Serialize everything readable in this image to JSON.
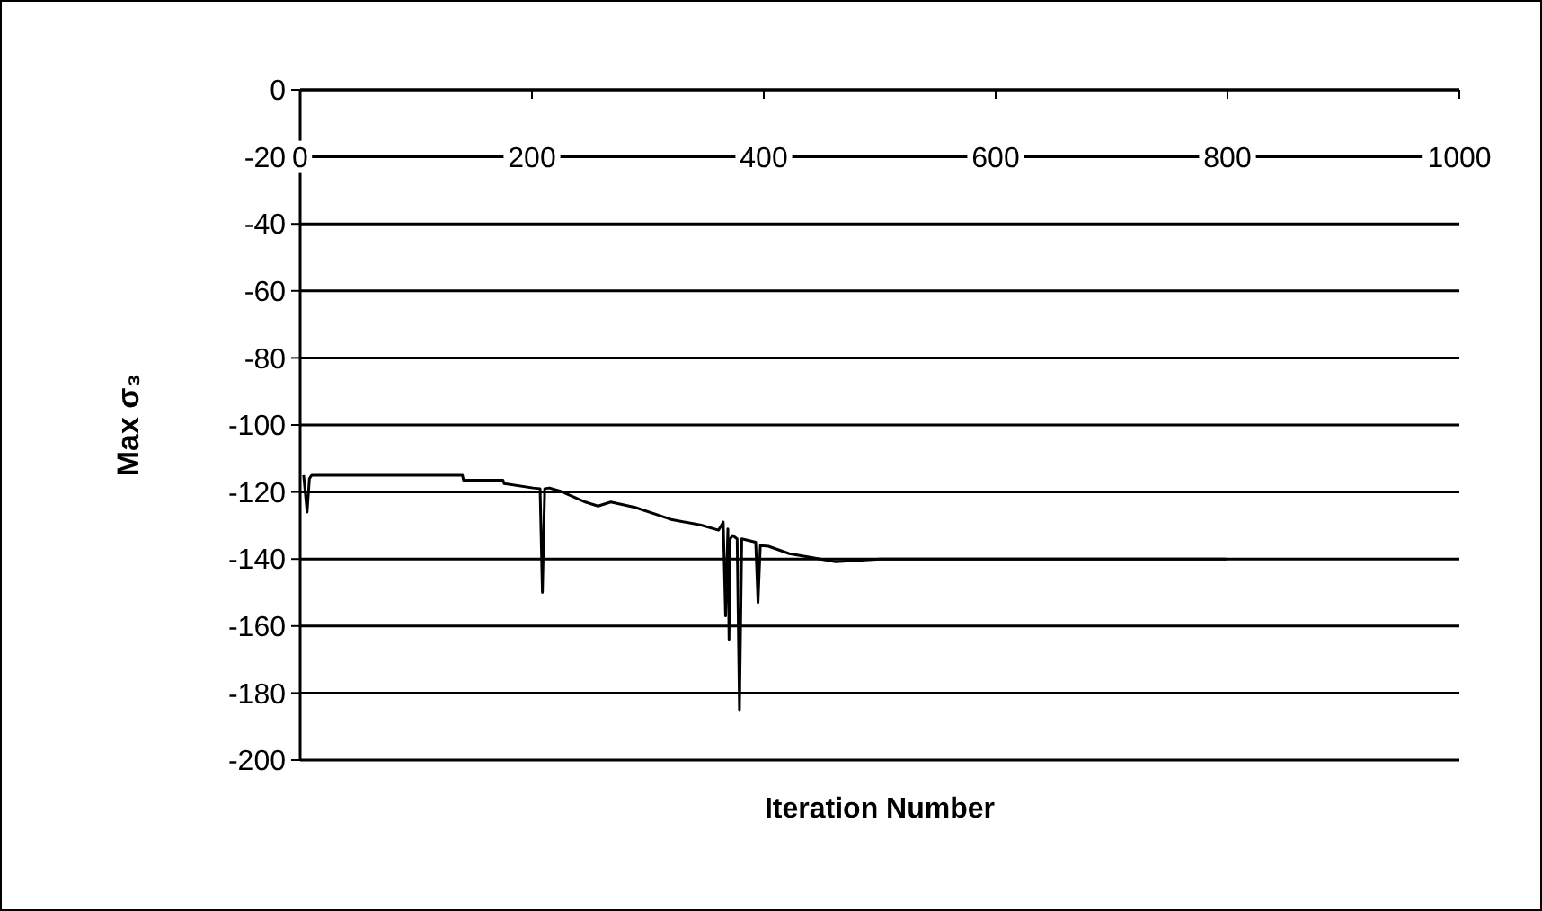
{
  "chart_data": {
    "type": "line",
    "xlabel": "Iteration Number",
    "ylabel": "Max σ₃",
    "x": [
      3,
      6,
      8,
      10,
      140,
      141,
      175,
      176,
      201,
      207,
      209,
      211,
      215,
      224,
      236,
      246,
      257,
      268,
      289,
      320,
      346,
      361,
      365,
      367,
      369,
      370,
      371,
      373,
      377,
      379,
      381,
      393,
      395,
      397,
      404,
      422,
      440,
      462,
      500,
      600,
      700,
      800
    ],
    "series": [
      {
        "color": "#000000",
        "values": [
          -115,
          -126,
          -116,
          -115,
          -115,
          -116.5,
          -116.5,
          -117.5,
          -118.8,
          -119,
          -150,
          -119,
          -118.8,
          -119.7,
          -121.5,
          -123,
          -124.2,
          -123,
          -124.6,
          -128.2,
          -129.9,
          -131.4,
          -129,
          -157,
          -131,
          -164,
          -134,
          -133,
          -134,
          -185,
          -134,
          -135,
          -153,
          -136,
          -136.2,
          -138.4,
          -139.5,
          -140.8,
          -140,
          -140,
          -140,
          -140
        ]
      }
    ],
    "xlim": [
      0,
      1000
    ],
    "xticks": [
      0,
      200,
      400,
      600,
      800,
      1000
    ],
    "ylim": [
      -200,
      0
    ],
    "yticks": [
      0,
      -20,
      -40,
      -60,
      -80,
      -100,
      -120,
      -140,
      -160,
      -180,
      -200
    ],
    "grid": "y",
    "marker": "none",
    "line_style": "solid"
  }
}
